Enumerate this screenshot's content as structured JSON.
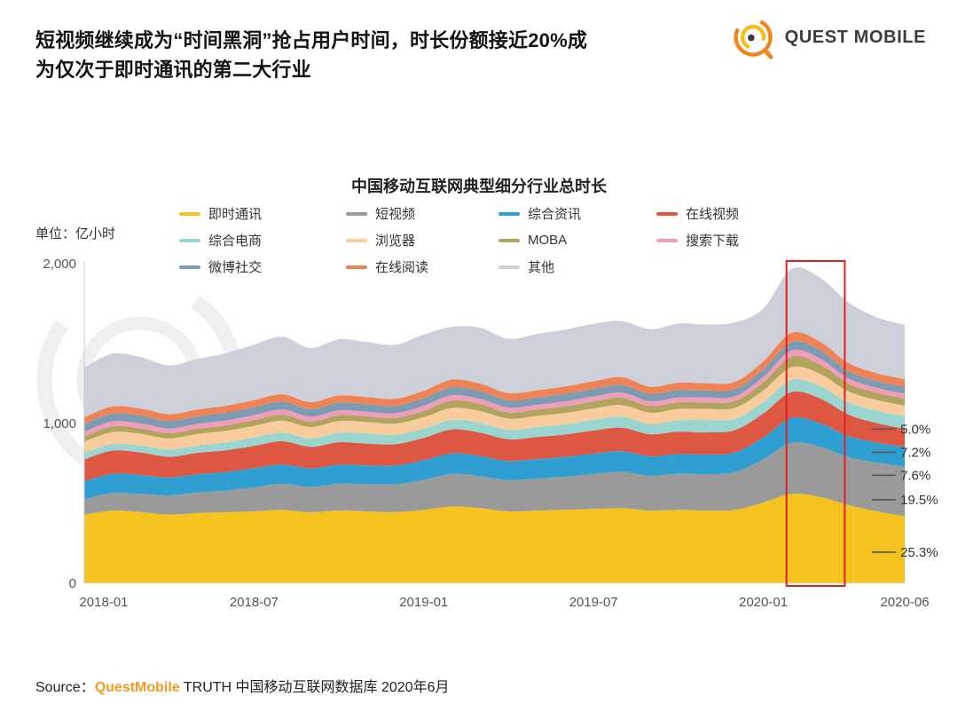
{
  "header": {
    "title_line1": "短视频继续成为“时间黑洞”抢占用户时间，时长份额接近20%成",
    "title_line2": "为仅次于即时通讯的第二大行业",
    "logo_text": "QUEST MOBILE"
  },
  "unit_label": "单位：亿小时",
  "source": {
    "prefix": "Source：",
    "brand": "QuestMobile",
    "suffix": " TRUTH 中国移动互联网数据库 2020年6月"
  },
  "chart_data": {
    "type": "area",
    "stacked": true,
    "title": "中国移动互联网典型细分行业总时长",
    "legend_position": "top",
    "grid": false,
    "x": [
      "2018-01",
      "2018-02",
      "2018-03",
      "2018-04",
      "2018-05",
      "2018-06",
      "2018-07",
      "2018-08",
      "2018-09",
      "2018-10",
      "2018-11",
      "2018-12",
      "2019-01",
      "2019-02",
      "2019-03",
      "2019-04",
      "2019-05",
      "2019-06",
      "2019-07",
      "2019-08",
      "2019-09",
      "2019-10",
      "2019-11",
      "2019-12",
      "2020-01",
      "2020-02",
      "2020-03",
      "2020-04",
      "2020-05",
      "2020-06"
    ],
    "x_tick_labels": [
      "2018-01",
      "2018-07",
      "2019-01",
      "2019-07",
      "2020-01",
      "2020-06"
    ],
    "ylim": [
      0,
      2000
    ],
    "y_ticks": [
      {
        "value": 0,
        "label": "0"
      },
      {
        "value": 1000,
        "label": "1,000"
      },
      {
        "value": 2000,
        "label": "2,000"
      }
    ],
    "series": [
      {
        "id": "instant-messaging",
        "name": "即时通讯",
        "color": "#F5C31E",
        "values": [
          430,
          455,
          445,
          430,
          440,
          445,
          450,
          460,
          445,
          455,
          450,
          445,
          460,
          480,
          470,
          450,
          455,
          460,
          465,
          470,
          455,
          460,
          455,
          460,
          505,
          560,
          540,
          490,
          450,
          420
        ]
      },
      {
        "id": "short-video",
        "name": "短视频",
        "color": "#9A9A9A",
        "values": [
          95,
          110,
          115,
          120,
          128,
          135,
          150,
          162,
          158,
          168,
          170,
          175,
          188,
          205,
          200,
          195,
          200,
          208,
          220,
          228,
          218,
          225,
          228,
          235,
          272,
          320,
          315,
          300,
          305,
          310
        ]
      },
      {
        "id": "aggregate-news",
        "name": "综合资讯",
        "color": "#2E9FD0",
        "values": [
          115,
          120,
          118,
          112,
          115,
          116,
          120,
          122,
          116,
          120,
          118,
          117,
          122,
          128,
          126,
          120,
          122,
          123,
          126,
          128,
          122,
          124,
          123,
          124,
          135,
          155,
          148,
          132,
          126,
          122
        ]
      },
      {
        "id": "online-video",
        "name": "在线视频",
        "color": "#DD5742",
        "values": [
          135,
          145,
          140,
          130,
          133,
          136,
          140,
          145,
          135,
          140,
          136,
          134,
          140,
          150,
          146,
          136,
          138,
          140,
          145,
          148,
          138,
          140,
          138,
          140,
          150,
          162,
          155,
          135,
          122,
          115
        ]
      },
      {
        "id": "ecommerce",
        "name": "综合电商",
        "color": "#9AD5D0",
        "values": [
          40,
          42,
          44,
          45,
          47,
          50,
          52,
          54,
          52,
          60,
          64,
          58,
          58,
          60,
          62,
          60,
          62,
          64,
          66,
          68,
          64,
          72,
          78,
          70,
          72,
          76,
          78,
          76,
          78,
          80
        ]
      },
      {
        "id": "browser",
        "name": "浏览器",
        "color": "#F8CC9C",
        "values": [
          72,
          74,
          73,
          70,
          71,
          72,
          73,
          74,
          71,
          72,
          71,
          70,
          72,
          74,
          73,
          70,
          70,
          71,
          72,
          73,
          70,
          70,
          69,
          69,
          72,
          78,
          75,
          68,
          66,
          65
        ]
      },
      {
        "id": "moba",
        "name": "MOBA",
        "color": "#B2A35E",
        "values": [
          32,
          36,
          34,
          32,
          33,
          34,
          36,
          38,
          35,
          36,
          35,
          36,
          40,
          48,
          44,
          38,
          40,
          42,
          44,
          46,
          42,
          42,
          41,
          42,
          52,
          68,
          60,
          50,
          46,
          45
        ]
      },
      {
        "id": "search-download",
        "name": "搜索下载",
        "color": "#F09CBB",
        "values": [
          30,
          31,
          31,
          30,
          30,
          31,
          31,
          32,
          30,
          31,
          30,
          30,
          31,
          32,
          32,
          30,
          30,
          31,
          31,
          32,
          30,
          30,
          30,
          30,
          33,
          38,
          36,
          32,
          31,
          30
        ]
      },
      {
        "id": "weibo-social",
        "name": "微博社交",
        "color": "#7F9BB1",
        "values": [
          48,
          50,
          49,
          47,
          48,
          48,
          49,
          50,
          48,
          48,
          47,
          46,
          48,
          50,
          49,
          46,
          46,
          47,
          48,
          49,
          46,
          46,
          45,
          45,
          48,
          54,
          52,
          46,
          43,
          42
        ]
      },
      {
        "id": "online-reading",
        "name": "在线阅读",
        "color": "#F08355",
        "values": [
          42,
          44,
          44,
          42,
          43,
          44,
          45,
          46,
          44,
          45,
          44,
          44,
          46,
          48,
          47,
          45,
          45,
          46,
          47,
          48,
          45,
          46,
          45,
          46,
          50,
          56,
          54,
          50,
          48,
          48
        ]
      },
      {
        "id": "others",
        "name": "其他",
        "color": "#CDD0D9",
        "values": [
          310,
          330,
          322,
          305,
          316,
          328,
          348,
          360,
          338,
          352,
          344,
          338,
          352,
          330,
          350,
          340,
          352,
          356,
          360,
          350,
          360,
          370,
          368,
          372,
          330,
          400,
          400,
          380,
          350,
          340
        ]
      }
    ],
    "annotations": [
      {
        "label": "5.0%",
        "value": 965
      },
      {
        "label": "7.2%",
        "value": 820
      },
      {
        "label": "7.6%",
        "value": 676
      },
      {
        "label": "19.5%",
        "value": 523
      },
      {
        "label": "25.3%",
        "value": 195
      }
    ],
    "highlight": {
      "from": "2020-02",
      "to": "2020-03",
      "color": "#E02020"
    }
  }
}
